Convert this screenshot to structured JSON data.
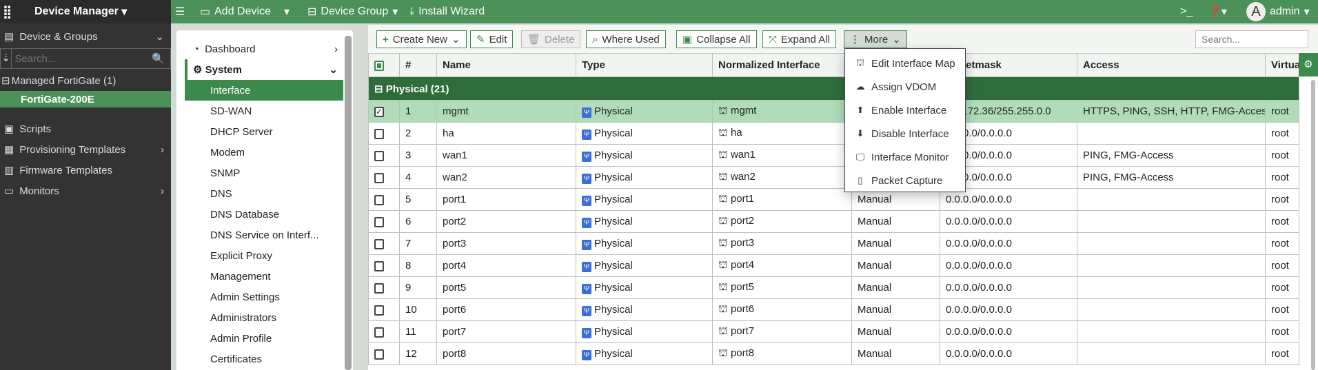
{
  "topbar": {
    "app": "Device Manager",
    "add_device": "Add Device",
    "device_group": "Device Group",
    "install_wizard": "Install Wizard",
    "user": "admin",
    "avatar_letter": "A"
  },
  "sidebar": {
    "device_groups": "Device & Groups",
    "search_placeholder": "Search...",
    "managed": "Managed FortiGate (1)",
    "device": "FortiGate-200E",
    "items": [
      {
        "label": "Scripts"
      },
      {
        "label": "Provisioning Templates"
      },
      {
        "label": "Firmware Templates"
      },
      {
        "label": "Monitors"
      }
    ]
  },
  "nav": {
    "dashboard": "Dashboard",
    "system": "System",
    "items": [
      "Interface",
      "SD-WAN",
      "DHCP Server",
      "Modem",
      "SNMP",
      "DNS",
      "DNS Database",
      "DNS Service on Interf...",
      "Explicit Proxy",
      "Management",
      "Admin Settings",
      "Administrators",
      "Admin Profile",
      "Certificates"
    ]
  },
  "toolbar": {
    "create_new": "Create New",
    "edit": "Edit",
    "delete": "Delete",
    "where_used": "Where Used",
    "collapse_all": "Collapse All",
    "expand_all": "Expand All",
    "more": "More",
    "search_placeholder": "Search..."
  },
  "more_menu": [
    "Edit Interface Map",
    "Assign VDOM",
    "Enable Interface",
    "Disable Interface",
    "Interface Monitor",
    "Packet Capture"
  ],
  "table": {
    "headers": [
      "#",
      "Name",
      "Type",
      "Normalized Interface",
      "",
      "IP/Netmask",
      "Access",
      "Virtual"
    ],
    "group": "Physical (21)",
    "rows": [
      [
        "1",
        "mgmt",
        "Physical",
        "mgmt",
        "",
        "x.x.172.36/255.255.0.0",
        "HTTPS, PING, SSH, HTTP, FMG-Access",
        "root"
      ],
      [
        "2",
        "ha",
        "Physical",
        "ha",
        "",
        "0.0.0.0/0.0.0.0",
        "",
        "root"
      ],
      [
        "3",
        "wan1",
        "Physical",
        "wan1",
        "",
        "0.0.0.0/0.0.0.0",
        "PING, FMG-Access",
        "root"
      ],
      [
        "4",
        "wan2",
        "Physical",
        "wan2",
        "",
        "0.0.0.0/0.0.0.0",
        "PING, FMG-Access",
        "root"
      ],
      [
        "5",
        "port1",
        "Physical",
        "port1",
        "Manual",
        "0.0.0.0/0.0.0.0",
        "",
        "root"
      ],
      [
        "6",
        "port2",
        "Physical",
        "port2",
        "Manual",
        "0.0.0.0/0.0.0.0",
        "",
        "root"
      ],
      [
        "7",
        "port3",
        "Physical",
        "port3",
        "Manual",
        "0.0.0.0/0.0.0.0",
        "",
        "root"
      ],
      [
        "8",
        "port4",
        "Physical",
        "port4",
        "Manual",
        "0.0.0.0/0.0.0.0",
        "",
        "root"
      ],
      [
        "9",
        "port5",
        "Physical",
        "port5",
        "Manual",
        "0.0.0.0/0.0.0.0",
        "",
        "root"
      ],
      [
        "10",
        "port6",
        "Physical",
        "port6",
        "Manual",
        "0.0.0.0/0.0.0.0",
        "",
        "root"
      ],
      [
        "11",
        "port7",
        "Physical",
        "port7",
        "Manual",
        "0.0.0.0/0.0.0.0",
        "",
        "root"
      ],
      [
        "12",
        "port8",
        "Physical",
        "port8",
        "Manual",
        "0.0.0.0/0.0.0.0",
        "",
        "root"
      ]
    ],
    "selected_row": 0
  },
  "colors": {
    "brand_green": "#4c9159",
    "group_green": "#2f6c3c",
    "selected_row": "#b0dcba",
    "sidebar": "#333333"
  }
}
